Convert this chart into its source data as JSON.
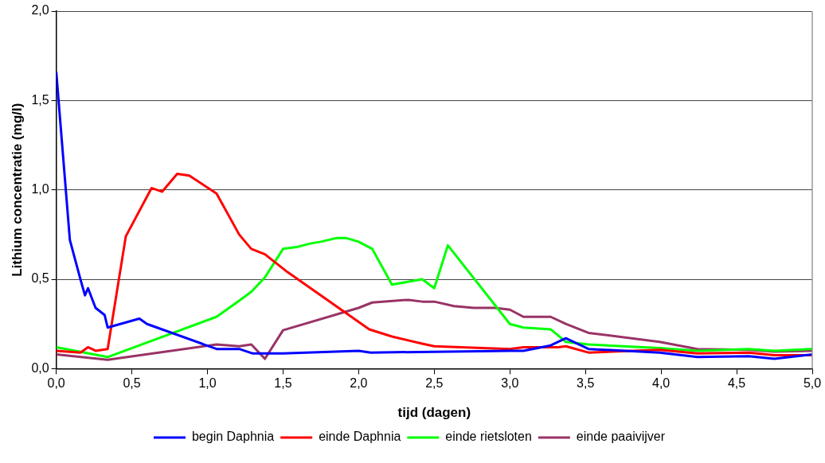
{
  "chart_data": {
    "type": "line",
    "xlabel": "tijd (dagen)",
    "ylabel": "Lithium concentratie (mg/l)",
    "xlim": [
      0,
      5
    ],
    "ylim": [
      0,
      2
    ],
    "xticks": [
      {
        "value": 0,
        "label": "0,0"
      },
      {
        "value": 0.5,
        "label": "0,5"
      },
      {
        "value": 1,
        "label": "1,0"
      },
      {
        "value": 1.5,
        "label": "1,5"
      },
      {
        "value": 2,
        "label": "2,0"
      },
      {
        "value": 2.5,
        "label": "2,5"
      },
      {
        "value": 3,
        "label": "3,0"
      },
      {
        "value": 3.5,
        "label": "3,5"
      },
      {
        "value": 4,
        "label": "4,0"
      },
      {
        "value": 4.5,
        "label": "4,5"
      },
      {
        "value": 5,
        "label": "5,0"
      }
    ],
    "yticks": [
      {
        "value": 0,
        "label": "0,0"
      },
      {
        "value": 0.5,
        "label": "0,5"
      },
      {
        "value": 1,
        "label": "1,0"
      },
      {
        "value": 1.5,
        "label": "1,5"
      },
      {
        "value": 2,
        "label": "2,0"
      }
    ],
    "grid": "y",
    "legend": "bottom",
    "marker": "none",
    "line_style": "solid",
    "series": [
      {
        "name": "begin Daphnia",
        "color": "#0000ff",
        "x": [
          0,
          0.09,
          0.16,
          0.19,
          0.21,
          0.26,
          0.32,
          0.34,
          0.55,
          0.6,
          1.06,
          1.21,
          1.3,
          1.5,
          2.0,
          2.08,
          3.0,
          3.09,
          3.27,
          3.37,
          3.52,
          3.99,
          4.24,
          4.58,
          4.75,
          5.0
        ],
        "values": [
          1.66,
          0.72,
          0.5,
          0.41,
          0.45,
          0.34,
          0.3,
          0.23,
          0.28,
          0.25,
          0.11,
          0.11,
          0.085,
          0.085,
          0.1,
          0.09,
          0.1,
          0.1,
          0.13,
          0.17,
          0.11,
          0.09,
          0.065,
          0.07,
          0.055,
          0.08
        ]
      },
      {
        "name": "einde Daphnia",
        "color": "#ff0000",
        "x": [
          0,
          0.16,
          0.21,
          0.26,
          0.34,
          0.46,
          0.63,
          0.7,
          0.8,
          0.88,
          1.06,
          1.21,
          1.29,
          1.38,
          1.53,
          2.07,
          2.22,
          2.42,
          2.5,
          3.0,
          3.09,
          3.32,
          3.37,
          3.52,
          3.99,
          4.24,
          4.58,
          4.75,
          5.0
        ],
        "values": [
          0.1,
          0.09,
          0.12,
          0.1,
          0.11,
          0.74,
          1.01,
          0.99,
          1.09,
          1.08,
          0.98,
          0.75,
          0.67,
          0.64,
          0.54,
          0.22,
          0.18,
          0.14,
          0.125,
          0.11,
          0.12,
          0.12,
          0.125,
          0.09,
          0.105,
          0.085,
          0.09,
          0.075,
          0.075
        ]
      },
      {
        "name": "einde rietsloten",
        "color": "#00ff00",
        "x": [
          0,
          0.34,
          1.06,
          1.21,
          1.29,
          1.38,
          1.5,
          1.59,
          1.68,
          1.75,
          1.85,
          1.92,
          2.0,
          2.09,
          2.22,
          2.42,
          2.5,
          2.59,
          3.0,
          3.09,
          3.27,
          3.37,
          3.52,
          3.99,
          4.24,
          4.58,
          4.75,
          5.0
        ],
        "values": [
          0.12,
          0.065,
          0.29,
          0.38,
          0.43,
          0.51,
          0.67,
          0.68,
          0.7,
          0.71,
          0.73,
          0.73,
          0.71,
          0.67,
          0.47,
          0.5,
          0.45,
          0.69,
          0.25,
          0.23,
          0.22,
          0.15,
          0.135,
          0.115,
          0.1,
          0.11,
          0.1,
          0.11
        ]
      },
      {
        "name": "einde paaivijver",
        "color": "#993366",
        "x": [
          0,
          0.34,
          1.06,
          1.21,
          1.29,
          1.38,
          1.5,
          2.0,
          2.09,
          2.33,
          2.42,
          2.5,
          2.63,
          2.76,
          2.9,
          3.0,
          3.09,
          3.27,
          3.37,
          3.52,
          3.99,
          4.24,
          4.58,
          4.75,
          5.0
        ],
        "values": [
          0.08,
          0.05,
          0.135,
          0.125,
          0.135,
          0.055,
          0.215,
          0.34,
          0.37,
          0.385,
          0.375,
          0.375,
          0.35,
          0.34,
          0.34,
          0.33,
          0.29,
          0.29,
          0.25,
          0.2,
          0.15,
          0.11,
          0.105,
          0.095,
          0.1
        ]
      }
    ]
  }
}
